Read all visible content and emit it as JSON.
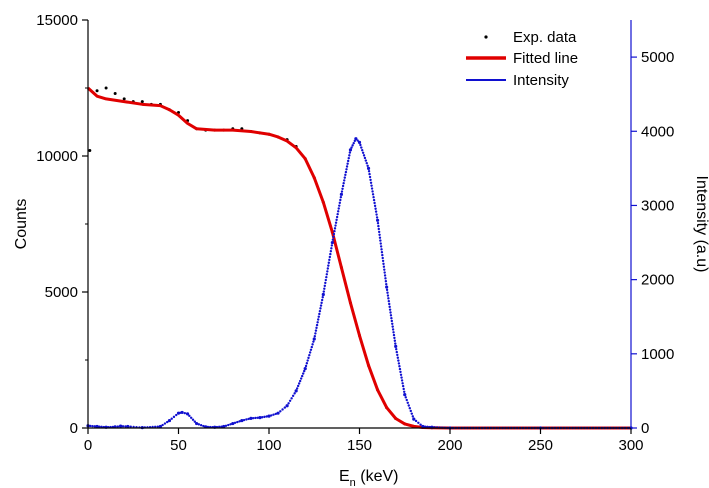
{
  "chart_data": {
    "type": "scatter",
    "xlabel": "E",
    "xlabel_sub": "n",
    "xlabel_unit": " (keV)",
    "ylabel": "Counts",
    "ylabel_right": "Intensity (a.u)",
    "xlim": [
      0,
      300
    ],
    "ylim": [
      0,
      15000
    ],
    "ylim_right": [
      0,
      5500
    ],
    "x_ticks": [
      0,
      50,
      100,
      150,
      200,
      250,
      300
    ],
    "x_tick_labels": [
      "0",
      "50",
      "100",
      "150",
      "200",
      "250",
      "300"
    ],
    "y_ticks": [
      0,
      5000,
      10000,
      15000
    ],
    "y_tick_labels": [
      "0",
      "5000",
      "10000",
      "15000"
    ],
    "y_right_ticks": [
      0,
      1000,
      2000,
      3000,
      4000,
      5000
    ],
    "y_right_tick_labels": [
      "0",
      "1000",
      "2000",
      "3000",
      "4000",
      "5000"
    ],
    "grid": false,
    "legend_placement": "top-right",
    "colors": {
      "exp": "#000000",
      "fit": "#e00000",
      "intensity": "#1010d0",
      "right_axis": "#1010d0"
    },
    "series": [
      {
        "name": "Exp. data",
        "axis": "left",
        "style": "points",
        "x": [
          1,
          5,
          10,
          15,
          20,
          25,
          30,
          35,
          40,
          45,
          50,
          55,
          60,
          65,
          70,
          75,
          80,
          85,
          90,
          95,
          100,
          105,
          110,
          115,
          120,
          125,
          130,
          135,
          140,
          145,
          150,
          155,
          160,
          165,
          170,
          175,
          180,
          185,
          190,
          200,
          220,
          240,
          260,
          280,
          300
        ],
        "values": [
          10200,
          12400,
          12500,
          12300,
          12100,
          12000,
          12000,
          11900,
          11900,
          11700,
          11600,
          11300,
          11000,
          10950,
          10950,
          10950,
          11000,
          11000,
          10900,
          10850,
          10800,
          10700,
          10600,
          10350,
          9900,
          9200,
          8300,
          7200,
          5900,
          4600,
          3400,
          2300,
          1400,
          750,
          350,
          150,
          60,
          20,
          10,
          0,
          0,
          0,
          0,
          0,
          0
        ]
      },
      {
        "name": "Fitted line",
        "axis": "left",
        "style": "line",
        "x": [
          0,
          5,
          10,
          20,
          30,
          40,
          45,
          50,
          55,
          60,
          70,
          80,
          90,
          100,
          105,
          110,
          115,
          120,
          125,
          130,
          135,
          140,
          145,
          150,
          155,
          160,
          165,
          170,
          175,
          180,
          185,
          190,
          200,
          250,
          300
        ],
        "values": [
          12500,
          12200,
          12100,
          12000,
          11900,
          11850,
          11700,
          11500,
          11200,
          11000,
          10950,
          10950,
          10900,
          10800,
          10700,
          10550,
          10300,
          9900,
          9200,
          8300,
          7200,
          5900,
          4600,
          3400,
          2300,
          1400,
          750,
          350,
          150,
          60,
          20,
          10,
          0,
          0,
          0
        ]
      },
      {
        "name": "Intensity",
        "axis": "right",
        "style": "dotted-line",
        "x": [
          0,
          5,
          10,
          15,
          18,
          22,
          30,
          40,
          45,
          50,
          52,
          55,
          60,
          65,
          70,
          75,
          80,
          85,
          90,
          95,
          100,
          105,
          110,
          115,
          120,
          125,
          130,
          135,
          140,
          145,
          148,
          150,
          155,
          160,
          165,
          170,
          175,
          180,
          185,
          190,
          200,
          250,
          300
        ],
        "values": [
          30,
          20,
          10,
          15,
          25,
          20,
          5,
          20,
          100,
          200,
          210,
          190,
          60,
          15,
          10,
          20,
          60,
          100,
          130,
          140,
          160,
          200,
          300,
          500,
          800,
          1200,
          1800,
          2500,
          3150,
          3750,
          3900,
          3850,
          3500,
          2800,
          1900,
          1100,
          450,
          120,
          20,
          10,
          0,
          0,
          0
        ]
      }
    ]
  }
}
